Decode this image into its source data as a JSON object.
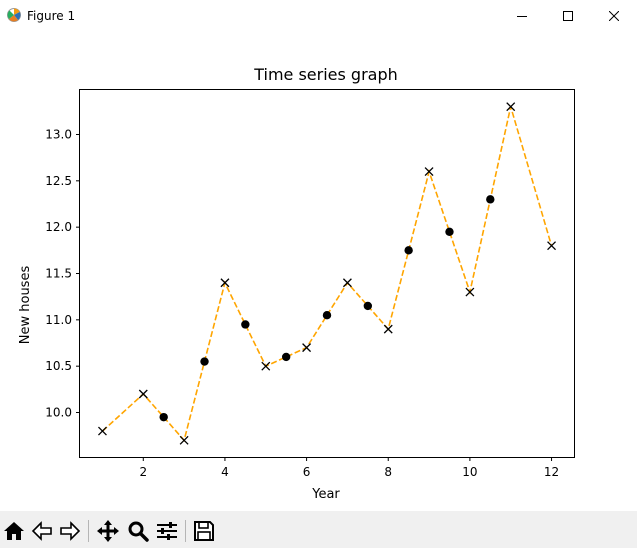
{
  "window": {
    "title": "Figure 1",
    "buttons": [
      "minimize",
      "maximize",
      "close"
    ]
  },
  "toolbar": {
    "icons": [
      "home-icon",
      "back-icon",
      "forward-icon",
      "pan-icon",
      "zoom-icon",
      "configure-subplots-icon",
      "save-icon"
    ]
  },
  "chart_data": {
    "type": "line",
    "title": "Time series graph",
    "xlabel": "Year",
    "ylabel": "New houses",
    "xlim": [
      0.45,
      12.55
    ],
    "ylim": [
      9.52,
      13.48
    ],
    "xticks": [
      2,
      4,
      6,
      8,
      10,
      12
    ],
    "xtick_labels": [
      "2",
      "4",
      "6",
      "8",
      "10",
      "12"
    ],
    "yticks": [
      10.0,
      10.5,
      11.0,
      11.5,
      12.0,
      12.5,
      13.0
    ],
    "ytick_labels": [
      "10.0",
      "10.5",
      "11.0",
      "11.5",
      "12.0",
      "12.5",
      "13.0"
    ],
    "grid": false,
    "line_color": "#ffa500",
    "line_style": "dashed",
    "series": [
      {
        "marker": "x",
        "marker_color": "#000000",
        "x": [
          1,
          2,
          3,
          4,
          5,
          6,
          7,
          8,
          9,
          10,
          11,
          12
        ],
        "y": [
          9.8,
          10.2,
          9.7,
          11.4,
          10.5,
          10.7,
          11.4,
          10.9,
          12.6,
          11.3,
          13.3,
          11.8
        ]
      },
      {
        "marker": "o",
        "marker_color": "#000000",
        "x": [
          2.5,
          3.5,
          4.5,
          5.5,
          6.5,
          7.5,
          8.5,
          9.5,
          10.5
        ],
        "y": [
          9.95,
          10.55,
          10.95,
          10.6,
          11.05,
          11.15,
          11.75,
          11.95,
          12.3
        ]
      }
    ]
  }
}
